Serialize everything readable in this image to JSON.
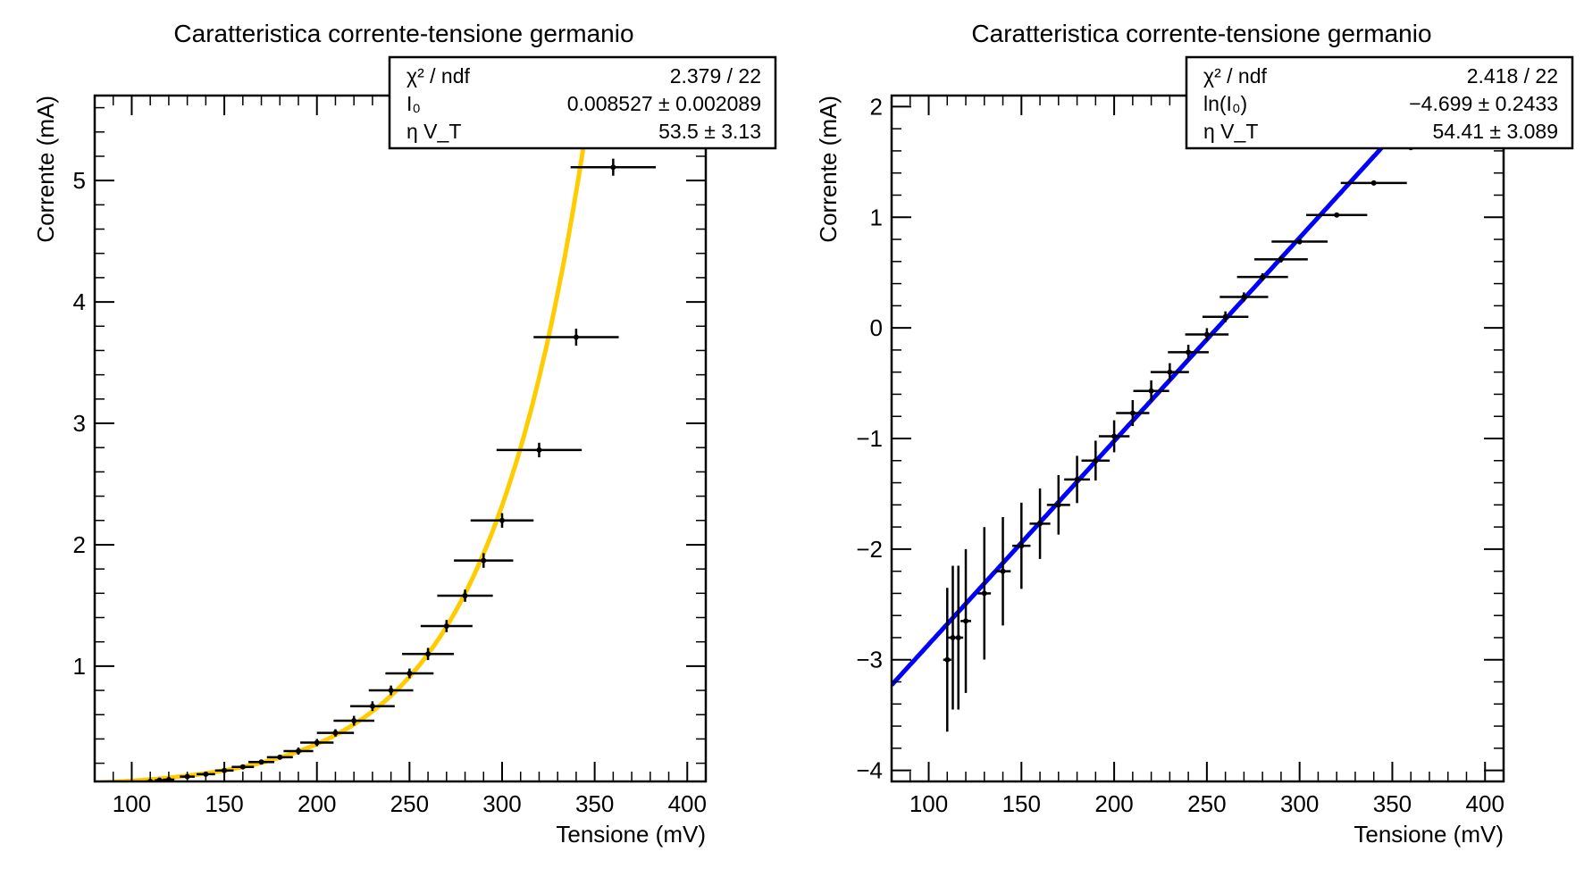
{
  "chart_data": [
    {
      "type": "scatter",
      "title": "Caratteristica corrente-tensione germanio",
      "xlabel": "Tensione (mV)",
      "ylabel": "Corrente (mA)",
      "xlim": [
        80,
        410
      ],
      "ylim": [
        0.05,
        5.7
      ],
      "xticks": [
        100,
        150,
        200,
        250,
        300,
        350,
        400
      ],
      "yticks": [
        1,
        2,
        3,
        4,
        5
      ],
      "grid": false,
      "fit_color": "#ffcc00",
      "fit_params": {
        "I0": 0.008527,
        "etaVT": 53.5
      },
      "stats": [
        {
          "label": "χ² / ndf",
          "value": "2.379 / 22"
        },
        {
          "label": "I₀",
          "value": "0.008527  ± 0.002089"
        },
        {
          "label": "η V_T",
          "value": "53.5  ±  3.13"
        }
      ],
      "series": [
        {
          "x": [
            110,
            115,
            120,
            130,
            140,
            150,
            160,
            170,
            180,
            190,
            200,
            210,
            220,
            230,
            240,
            250,
            260,
            270,
            280,
            290,
            300,
            320,
            340,
            360
          ],
          "y": [
            0.05,
            0.06,
            0.065,
            0.09,
            0.11,
            0.14,
            0.17,
            0.21,
            0.25,
            0.3,
            0.37,
            0.45,
            0.55,
            0.67,
            0.8,
            0.94,
            1.1,
            1.33,
            1.58,
            1.87,
            2.2,
            2.78,
            3.71,
            5.11
          ],
          "xerr": [
            2.5,
            2.5,
            3,
            4,
            5,
            5,
            6,
            7,
            7,
            8,
            9,
            10,
            11,
            12,
            12,
            13,
            14,
            14,
            15,
            16,
            17,
            23,
            23,
            23
          ],
          "yerr": [
            0.02,
            0.02,
            0.02,
            0.02,
            0.02,
            0.02,
            0.02,
            0.02,
            0.02,
            0.03,
            0.03,
            0.03,
            0.04,
            0.04,
            0.04,
            0.04,
            0.05,
            0.05,
            0.05,
            0.06,
            0.06,
            0.06,
            0.07,
            0.07
          ]
        }
      ]
    },
    {
      "type": "scatter",
      "title": "Caratteristica corrente-tensione germanio",
      "xlabel": "Tensione (mV)",
      "ylabel": "Corrente (mA)",
      "xlim": [
        80,
        410
      ],
      "ylim": [
        -4.1,
        2.1
      ],
      "xticks": [
        100,
        150,
        200,
        250,
        300,
        350,
        400
      ],
      "yticks": [
        -4,
        -3,
        -2,
        -1,
        0,
        1,
        2
      ],
      "grid": false,
      "fit_color": "#0000ff",
      "fit_params": {
        "lnI0": -4.699,
        "etaVT": 54.41
      },
      "stats": [
        {
          "label": "χ² / ndf",
          "value": "2.418 / 22"
        },
        {
          "label": "ln(I₀)",
          "value": "−4.699  ± 0.2433"
        },
        {
          "label": "η V_T",
          "value": "54.41  ± 3.089"
        }
      ],
      "series": [
        {
          "x": [
            110,
            113,
            116,
            120,
            130,
            140,
            150,
            160,
            170,
            180,
            190,
            200,
            210,
            220,
            230,
            240,
            250,
            260,
            270,
            280,
            290,
            300,
            320,
            340,
            360
          ],
          "y": [
            -3.0,
            -2.8,
            -2.8,
            -2.65,
            -2.4,
            -2.2,
            -1.97,
            -1.77,
            -1.6,
            -1.37,
            -1.2,
            -0.98,
            -0.77,
            -0.57,
            -0.4,
            -0.22,
            -0.06,
            0.1,
            0.28,
            0.46,
            0.62,
            0.78,
            1.02,
            1.31,
            1.63
          ]
        }
      ]
    }
  ]
}
